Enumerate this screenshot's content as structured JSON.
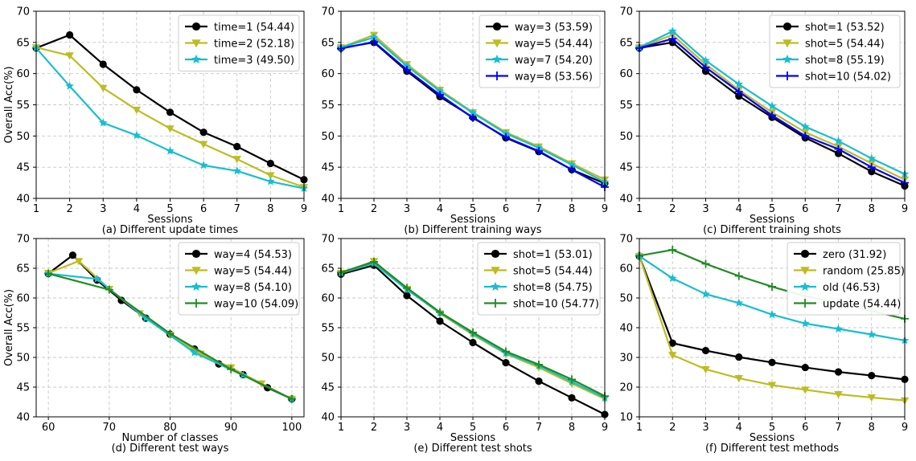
{
  "chart_data": [
    {
      "type": "line",
      "caption": "(a) Different update times",
      "xlabel": "Sessions",
      "ylabel": "Overall Acc(%)",
      "xlim": [
        1,
        9
      ],
      "ylim": [
        40,
        70
      ],
      "xticks": [
        1,
        2,
        3,
        4,
        5,
        6,
        7,
        8,
        9
      ],
      "yticks": [
        40,
        45,
        50,
        55,
        60,
        65,
        70
      ],
      "legend_position": "top-right",
      "grid": true,
      "x": [
        1,
        2,
        3,
        4,
        5,
        6,
        7,
        8,
        9
      ],
      "series": [
        {
          "name": "time=1 (54.44)",
          "color": "#000000",
          "marker": "circle",
          "values": [
            64.1,
            66.2,
            61.5,
            57.4,
            53.8,
            50.6,
            48.3,
            45.6,
            43.0
          ]
        },
        {
          "name": "time=2 (52.18)",
          "color": "#bcbd22",
          "marker": "triangle-down",
          "values": [
            64.2,
            62.9,
            57.7,
            54.2,
            51.2,
            48.7,
            46.3,
            43.7,
            41.8
          ]
        },
        {
          "name": "time=3 (49.50)",
          "color": "#17becf",
          "marker": "star",
          "values": [
            64.1,
            58.0,
            52.1,
            50.1,
            47.6,
            45.3,
            44.4,
            42.7,
            41.6
          ]
        }
      ]
    },
    {
      "type": "line",
      "caption": "(b) Different training ways",
      "xlabel": "Sessions",
      "ylabel": "",
      "xlim": [
        1,
        9
      ],
      "ylim": [
        40,
        70
      ],
      "xticks": [
        1,
        2,
        3,
        4,
        5,
        6,
        7,
        8,
        9
      ],
      "yticks": [
        40,
        45,
        50,
        55,
        60,
        65,
        70
      ],
      "legend_position": "top-right",
      "grid": true,
      "x": [
        1,
        2,
        3,
        4,
        5,
        6,
        7,
        8,
        9
      ],
      "series": [
        {
          "name": "way=3 (53.59)",
          "color": "#000000",
          "marker": "circle",
          "values": [
            64.1,
            65.0,
            60.4,
            56.3,
            53.0,
            49.7,
            47.5,
            44.6,
            42.4
          ]
        },
        {
          "name": "way=5 (54.44)",
          "color": "#bcbd22",
          "marker": "triangle-down",
          "values": [
            64.2,
            66.2,
            61.5,
            57.4,
            53.8,
            50.6,
            48.3,
            45.6,
            43.0
          ]
        },
        {
          "name": "way=7 (54.20)",
          "color": "#17becf",
          "marker": "star",
          "values": [
            64.2,
            65.8,
            61.2,
            57.2,
            53.7,
            50.4,
            48.1,
            45.4,
            42.6
          ]
        },
        {
          "name": "way=8 (53.56)",
          "color": "#0000ff",
          "marker": "plus",
          "values": [
            64.0,
            65.1,
            60.6,
            56.6,
            52.9,
            49.8,
            47.6,
            44.6,
            41.8
          ]
        }
      ]
    },
    {
      "type": "line",
      "caption": "(c) Different training shots",
      "xlabel": "Sessions",
      "ylabel": "",
      "xlim": [
        1,
        9
      ],
      "ylim": [
        40,
        70
      ],
      "xticks": [
        1,
        2,
        3,
        4,
        5,
        6,
        7,
        8,
        9
      ],
      "yticks": [
        40,
        45,
        50,
        55,
        60,
        65,
        70
      ],
      "legend_position": "top-right",
      "grid": true,
      "x": [
        1,
        2,
        3,
        4,
        5,
        6,
        7,
        8,
        9
      ],
      "series": [
        {
          "name": "shot=1 (53.52)",
          "color": "#000000",
          "marker": "circle",
          "values": [
            64.1,
            65.0,
            60.4,
            56.4,
            53.0,
            49.7,
            47.2,
            44.3,
            42.0
          ]
        },
        {
          "name": "shot=5 (54.44)",
          "color": "#bcbd22",
          "marker": "triangle-down",
          "values": [
            64.2,
            66.2,
            61.5,
            57.4,
            53.8,
            50.6,
            48.3,
            45.6,
            43.0
          ]
        },
        {
          "name": "shot=8 (55.19)",
          "color": "#17becf",
          "marker": "star",
          "values": [
            64.2,
            66.8,
            62.1,
            58.3,
            54.8,
            51.5,
            49.2,
            46.4,
            43.9
          ]
        },
        {
          "name": "shot=10 (54.02)",
          "color": "#0000ff",
          "marker": "plus",
          "values": [
            64.1,
            65.6,
            61.0,
            57.1,
            53.3,
            50.0,
            47.9,
            45.0,
            42.5
          ]
        }
      ]
    },
    {
      "type": "line",
      "caption": "(d) Different test ways",
      "xlabel": "Number of classes",
      "ylabel": "Overall Acc(%)",
      "xlim": [
        58,
        102
      ],
      "ylim": [
        40,
        70
      ],
      "xticks": [
        60,
        70,
        80,
        90,
        100
      ],
      "yticks": [
        40,
        45,
        50,
        55,
        60,
        65,
        70
      ],
      "legend_position": "top-right",
      "grid": true,
      "series": [
        {
          "name": "way=4 (54.53)",
          "color": "#000000",
          "marker": "circle",
          "x": [
            60,
            64,
            68,
            72,
            76,
            80,
            84,
            88,
            92,
            96,
            100
          ],
          "values": [
            64.1,
            67.2,
            63.0,
            59.6,
            56.6,
            53.9,
            51.4,
            48.9,
            47.1,
            44.9,
            43.0
          ]
        },
        {
          "name": "way=5 (54.44)",
          "color": "#bcbd22",
          "marker": "triangle-down",
          "x": [
            60,
            65,
            70,
            75,
            80,
            85,
            90,
            95,
            100
          ],
          "values": [
            64.2,
            66.2,
            61.5,
            57.4,
            53.8,
            50.6,
            48.3,
            45.6,
            43.0
          ]
        },
        {
          "name": "way=8 (54.10)",
          "color": "#17becf",
          "marker": "star",
          "x": [
            60,
            68,
            76,
            84,
            92,
            100
          ],
          "values": [
            64.1,
            63.2,
            56.6,
            50.8,
            47.0,
            43.0
          ]
        },
        {
          "name": "way=10 (54.09)",
          "color": "#228b22",
          "marker": "plus",
          "x": [
            60,
            70,
            80,
            90,
            100
          ],
          "values": [
            64.1,
            61.4,
            54.0,
            48.0,
            43.0
          ]
        }
      ]
    },
    {
      "type": "line",
      "caption": "(e) Different test shots",
      "xlabel": "Sessions",
      "ylabel": "",
      "xlim": [
        1,
        9
      ],
      "ylim": [
        40,
        70
      ],
      "xticks": [
        1,
        2,
        3,
        4,
        5,
        6,
        7,
        8,
        9
      ],
      "yticks": [
        40,
        45,
        50,
        55,
        60,
        65,
        70
      ],
      "legend_position": "top-right",
      "grid": true,
      "x": [
        1,
        2,
        3,
        4,
        5,
        6,
        7,
        8,
        9
      ],
      "series": [
        {
          "name": "shot=1 (53.01)",
          "color": "#000000",
          "marker": "circle",
          "values": [
            64.0,
            65.5,
            60.4,
            56.1,
            52.5,
            49.1,
            46.0,
            43.2,
            40.4
          ]
        },
        {
          "name": "shot=5 (54.44)",
          "color": "#bcbd22",
          "marker": "triangle-down",
          "values": [
            64.2,
            66.2,
            61.5,
            57.4,
            53.8,
            50.6,
            48.3,
            45.6,
            43.0
          ]
        },
        {
          "name": "shot=8 (54.75)",
          "color": "#17becf",
          "marker": "star",
          "values": [
            64.2,
            65.8,
            61.4,
            57.5,
            54.0,
            50.7,
            48.6,
            45.9,
            43.2
          ]
        },
        {
          "name": "shot=10 (54.77)",
          "color": "#228b22",
          "marker": "plus",
          "values": [
            64.3,
            66.1,
            61.7,
            57.6,
            54.2,
            51.0,
            48.8,
            46.3,
            43.5
          ]
        }
      ]
    },
    {
      "type": "line",
      "caption": "(f) Different test methods",
      "xlabel": "Sessions",
      "ylabel": "",
      "xlim": [
        1,
        9
      ],
      "ylim": [
        10,
        70
      ],
      "xticks": [
        1,
        2,
        3,
        4,
        5,
        6,
        7,
        8,
        9
      ],
      "yticks": [
        10,
        20,
        30,
        40,
        50,
        60,
        70
      ],
      "legend_position": "top-right",
      "grid": true,
      "x": [
        1,
        2,
        3,
        4,
        5,
        6,
        7,
        8,
        9
      ],
      "series": [
        {
          "name": "zero (31.92)",
          "color": "#000000",
          "marker": "circle",
          "values": [
            64.1,
            34.8,
            32.3,
            30.1,
            28.3,
            26.6,
            25.1,
            23.9,
            22.6
          ]
        },
        {
          "name": "random (25.85)",
          "color": "#bcbd22",
          "marker": "triangle-down",
          "values": [
            64.1,
            30.8,
            26.0,
            23.0,
            20.7,
            19.1,
            17.6,
            16.5,
            15.5
          ]
        },
        {
          "name": "old (46.53)",
          "color": "#17becf",
          "marker": "star",
          "values": [
            64.1,
            56.6,
            51.3,
            48.3,
            44.4,
            41.4,
            39.6,
            37.7,
            35.7
          ]
        },
        {
          "name": "update (54.44)",
          "color": "#228b22",
          "marker": "plus",
          "values": [
            64.2,
            66.2,
            61.5,
            57.4,
            53.8,
            50.6,
            48.3,
            45.6,
            43.0
          ]
        }
      ]
    }
  ]
}
